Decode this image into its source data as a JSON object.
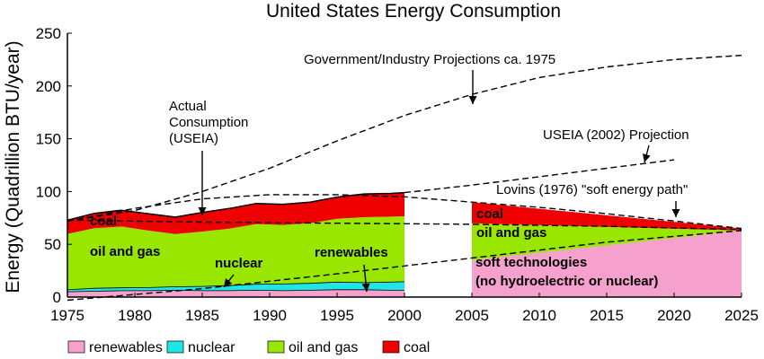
{
  "chart_data": {
    "type": "area",
    "title": "United States Energy Consumption",
    "ylabel": "Energy (Quadrillion BTU/year)",
    "xlabel": "",
    "xlim": [
      1975,
      2025
    ],
    "ylim": [
      0,
      250
    ],
    "x_ticks": [
      "1975",
      "1980",
      "1985",
      "1990",
      "1995",
      "2000",
      "2005",
      "2010",
      "2015",
      "2020",
      "2025"
    ],
    "y_ticks": [
      "0",
      "50",
      "100",
      "150",
      "200",
      "250"
    ],
    "colors": {
      "renewables": "#f5a0cd",
      "nuclear": "#1ee6e6",
      "oil_and_gas": "#99e600",
      "coal": "#ee0000",
      "soft": "#f5a0cd"
    },
    "actual": {
      "x": [
        1975,
        1977,
        1979,
        1981,
        1983,
        1985,
        1987,
        1989,
        1991,
        1993,
        1995,
        1997,
        1999,
        2000
      ],
      "series": [
        {
          "name": "renewables",
          "values": [
            5,
            5.5,
            6,
            6,
            6.5,
            6,
            6,
            6.5,
            6,
            6.5,
            7,
            7,
            6.5,
            6.5
          ]
        },
        {
          "name": "nuclear",
          "values": [
            1.9,
            2.8,
            2.8,
            3.0,
            3.3,
            4.1,
            4.9,
            5.7,
            6.4,
            6.5,
            7.2,
            6.7,
            7.7,
            8.0
          ]
        },
        {
          "name": "oil and gas",
          "values": [
            53,
            57,
            58,
            54,
            50,
            52,
            54,
            57,
            56,
            57,
            60,
            62,
            62,
            62
          ]
        },
        {
          "name": "coal",
          "values": [
            13,
            14,
            15.5,
            16,
            16,
            18,
            19,
            19.5,
            19.5,
            20,
            20.5,
            22,
            22,
            22.5
          ]
        }
      ]
    },
    "lovins": {
      "x": [
        2005,
        2025
      ],
      "series": [
        {
          "name": "soft technologies",
          "values": [
            35,
            63
          ]
        },
        {
          "name": "oil and gas",
          "values": [
            35,
            0
          ]
        },
        {
          "name": "coal",
          "values": [
            20,
            2
          ]
        }
      ]
    },
    "projections": [
      {
        "name": "Government/Industry Projections ca. 1975",
        "x": [
          1975,
          1980,
          1985,
          1990,
          1995,
          2000,
          2005,
          2010,
          2015,
          2020,
          2025
        ],
        "y": [
          72,
          82,
          100,
          122,
          148,
          172,
          192,
          208,
          218,
          225,
          229
        ]
      },
      {
        "name": "USEIA (2002) Projection",
        "x": [
          2000,
          2005,
          2010,
          2015,
          2020
        ],
        "y": [
          99,
          106,
          114,
          122,
          130
        ]
      },
      {
        "name": "Lovins (1976) \"soft energy path\"",
        "x": [
          1975,
          1980,
          1985,
          1990,
          1995,
          2000,
          2005,
          2010,
          2015,
          2020,
          2025
        ],
        "y": [
          72,
          84,
          93,
          97,
          97,
          95,
          90,
          85,
          79,
          72,
          65
        ]
      },
      {
        "name": "",
        "x": [
          1975,
          1985,
          1995,
          2005,
          2015,
          2025
        ],
        "y": [
          73,
          71,
          70,
          69,
          67,
          64
        ]
      },
      {
        "name": "",
        "x": [
          1975,
          1985,
          1995,
          2005,
          2015,
          2025
        ],
        "y": [
          -3,
          8,
          22,
          37,
          52,
          63
        ]
      }
    ],
    "labels": {
      "actual": "Actual\nConsumption\n(USEIA)",
      "coal": "coal",
      "oil_and_gas": "oil and gas",
      "nuclear": "nuclear",
      "renewables": "renewables",
      "soft": "soft technologies\n(no hydroelectric or  nuclear)",
      "coal_future": "coal",
      "oil_and_gas_future": "oil and gas"
    },
    "legend": [
      {
        "name": "renewables",
        "color": "#f5a0cd"
      },
      {
        "name": "nuclear",
        "color": "#1ee6e6"
      },
      {
        "name": "oil and gas",
        "color": "#99e600"
      },
      {
        "name": "coal",
        "color": "#ee0000"
      }
    ],
    "legend_position": "bottom-left"
  }
}
